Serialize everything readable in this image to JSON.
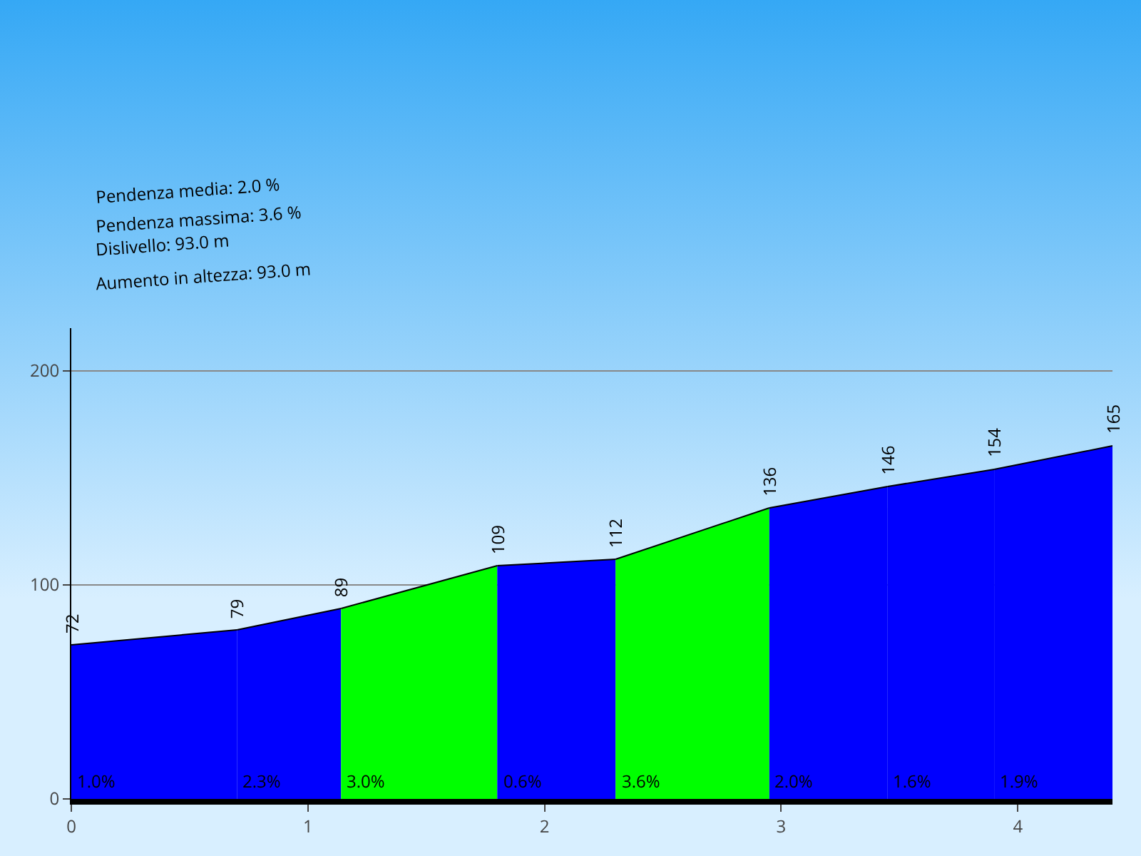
{
  "chart_data": {
    "type": "area",
    "annotations": [
      "Pendenza media: 2.0 %",
      "Pendenza massima: 3.6 %",
      "Dislivello: 93.0 m",
      "Aumento in altezza: 93.0 m",
      {
        "text": "1.0%",
        "x": 0,
        "y": 0
      },
      {
        "text": "2.3%",
        "x": 0.7,
        "y": 0
      },
      {
        "text": "3.0%",
        "x": 1.14,
        "y": 0
      },
      {
        "text": "0.6%",
        "x": 1.8,
        "y": 0
      },
      {
        "text": "3.6%",
        "x": 2.3,
        "y": 0
      },
      {
        "text": "2.0%",
        "x": 2.95,
        "y": 0
      },
      {
        "text": "1.6%",
        "x": 3.45,
        "y": 0
      },
      {
        "text": "1.9%",
        "x": 3.9,
        "y": 0
      }
    ],
    "series": [
      {
        "color": "#0000ff",
        "x": [
          0,
          0.7
        ],
        "values": [
          72,
          79
        ],
        "value_labels": [
          "72",
          null
        ]
      },
      {
        "color": "#0000ff",
        "x": [
          0.7,
          1.14
        ],
        "values": [
          79,
          89
        ],
        "value_labels": [
          "79",
          null
        ]
      },
      {
        "color": "#00ff00",
        "x": [
          1.14,
          1.8
        ],
        "values": [
          89,
          109
        ],
        "value_labels": [
          "89",
          null
        ]
      },
      {
        "color": "#0000ff",
        "x": [
          1.8,
          2.3
        ],
        "values": [
          109,
          112
        ],
        "value_labels": [
          "109",
          null
        ]
      },
      {
        "color": "#00ff00",
        "x": [
          2.3,
          2.95
        ],
        "values": [
          112,
          136
        ],
        "value_labels": [
          "112",
          null
        ]
      },
      {
        "color": "#0000ff",
        "x": [
          2.95,
          3.45
        ],
        "values": [
          136,
          146
        ],
        "value_labels": [
          "136",
          null
        ]
      },
      {
        "color": "#0000ff",
        "x": [
          3.45,
          3.9
        ],
        "values": [
          146,
          154
        ],
        "value_labels": [
          "146",
          null
        ]
      },
      {
        "color": "#0000ff",
        "x": [
          3.9,
          4.4
        ],
        "values": [
          154,
          165
        ],
        "value_labels": [
          "154",
          "165"
        ]
      }
    ],
    "xlim": [
      0,
      4.4
    ],
    "xticks": [
      0,
      1,
      2,
      3,
      4
    ],
    "ylim": [
      0,
      220
    ],
    "yticks": [
      0,
      100,
      200
    ],
    "grid": "y"
  }
}
